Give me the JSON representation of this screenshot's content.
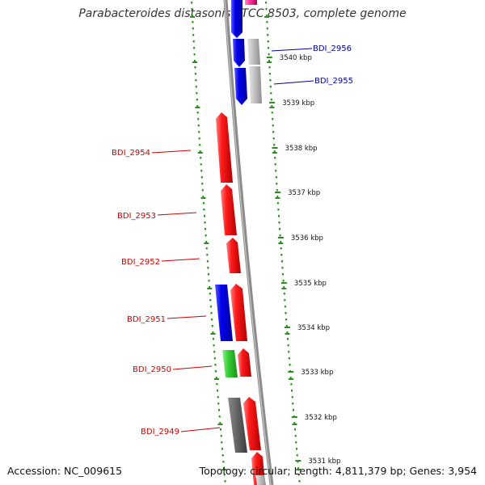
{
  "title": "Parabacteroides distasonis ATCC 8503, complete genome",
  "footer": {
    "accession": "Accession: NC_009615",
    "summary": "Topology: circular; Length: 4,811,379 bp; Genes: 3,954"
  },
  "colors": {
    "background": "#ffffff",
    "backbone": "#8c8c8c",
    "dotted_track": "#2e8b22",
    "label_red": "#cc0000",
    "label_blue": "#000099",
    "gene_red": "#ff0000",
    "gene_blue": "#0000ee",
    "gene_gray": "#bfbfbf",
    "gene_dark": "#666666",
    "gene_green": "#33cc33",
    "gene_pink": "#ff3399"
  },
  "ticks": [
    {
      "label": "3540 kbp"
    },
    {
      "label": "3539 kbp"
    },
    {
      "label": "3538 kbp"
    },
    {
      "label": "3537 kbp"
    },
    {
      "label": "3536 kbp"
    },
    {
      "label": "3535 kbp"
    },
    {
      "label": "3534 kbp"
    },
    {
      "label": "3533 kbp"
    },
    {
      "label": "3532 kbp"
    },
    {
      "label": "3531 kbp"
    }
  ],
  "gene_labels": [
    {
      "name": "BDI_2956",
      "color": "blue"
    },
    {
      "name": "BDI_2955",
      "color": "blue"
    },
    {
      "name": "BDI_2954",
      "color": "red"
    },
    {
      "name": "BDI_2953",
      "color": "red"
    },
    {
      "name": "BDI_2952",
      "color": "red"
    },
    {
      "name": "BDI_2951",
      "color": "red"
    },
    {
      "name": "BDI_2950",
      "color": "red"
    },
    {
      "name": "BDI_2949",
      "color": "red"
    }
  ]
}
